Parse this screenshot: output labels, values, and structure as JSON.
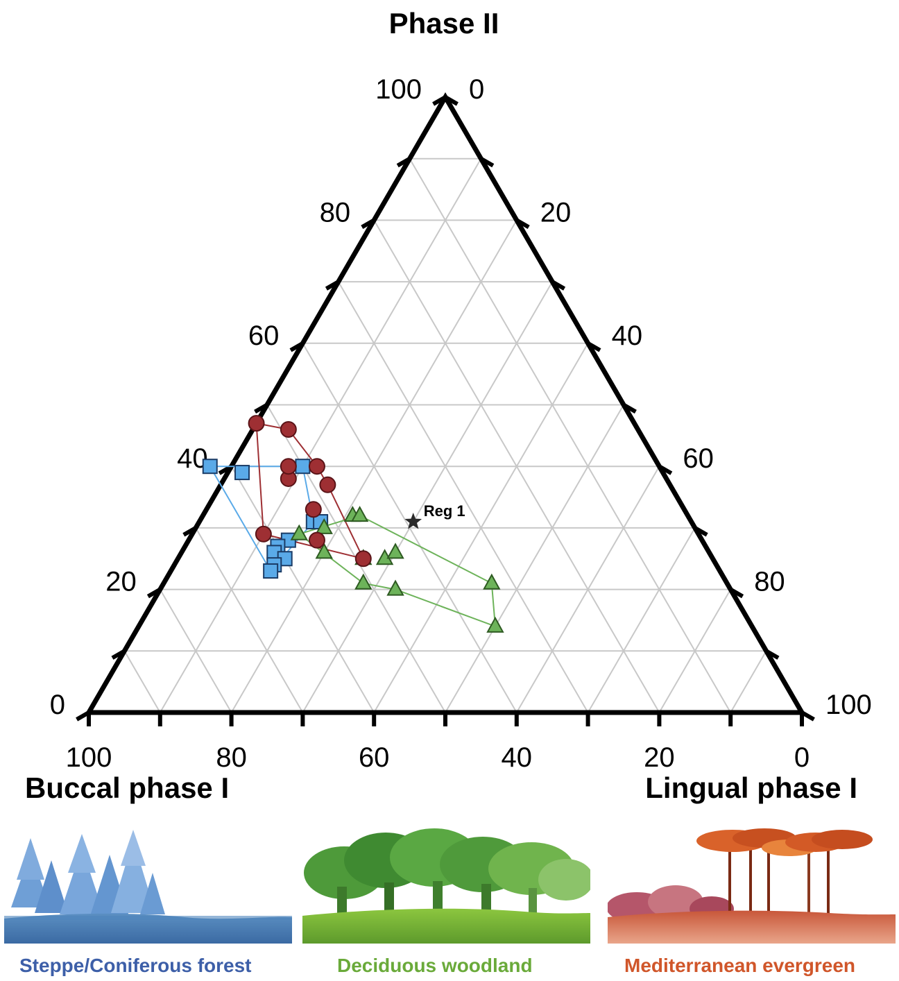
{
  "chart_data": {
    "type": "ternary-scatter",
    "title": "",
    "axes": {
      "top": "Phase II",
      "left": "Buccal phase I",
      "right": "Lingual phase I"
    },
    "ticks": [
      0,
      20,
      40,
      60,
      80,
      100
    ],
    "grid": true,
    "units": "percent",
    "series": [
      {
        "group": "steppe",
        "marker": "square",
        "color": "#5aaae8",
        "points": [
          {
            "phase2": 40,
            "buccal": 63,
            "lingual": -3
          },
          {
            "phase2": 39,
            "buccal": 59,
            "lingual": 2
          },
          {
            "phase2": 40,
            "buccal": 50,
            "lingual": 10
          },
          {
            "phase2": 31,
            "buccal": 53,
            "lingual": 16
          },
          {
            "phase2": 31,
            "buccal": 52,
            "lingual": 17
          },
          {
            "phase2": 28,
            "buccal": 58,
            "lingual": 14
          },
          {
            "phase2": 27,
            "buccal": 60,
            "lingual": 13
          },
          {
            "phase2": 26,
            "buccal": 61,
            "lingual": 13
          },
          {
            "phase2": 25,
            "buccal": 60,
            "lingual": 15
          },
          {
            "phase2": 24,
            "buccal": 62,
            "lingual": 14
          },
          {
            "phase2": 23,
            "buccal": 63,
            "lingual": 14
          }
        ]
      },
      {
        "group": "deciduous",
        "marker": "triangle",
        "color": "#6db35a",
        "points": [
          {
            "phase2": 29,
            "buccal": 56,
            "lingual": 15
          },
          {
            "phase2": 30,
            "buccal": 52,
            "lingual": 18
          },
          {
            "phase2": 32,
            "buccal": 47,
            "lingual": 21
          },
          {
            "phase2": 32,
            "buccal": 46,
            "lingual": 22
          },
          {
            "phase2": 26,
            "buccal": 54,
            "lingual": 20
          },
          {
            "phase2": 25,
            "buccal": 49,
            "lingual": 26
          },
          {
            "phase2": 25,
            "buccal": 46,
            "lingual": 29
          },
          {
            "phase2": 26,
            "buccal": 44,
            "lingual": 30
          },
          {
            "phase2": 21,
            "buccal": 51,
            "lingual": 28
          },
          {
            "phase2": 20,
            "buccal": 47,
            "lingual": 33
          },
          {
            "phase2": 21,
            "buccal": 33,
            "lingual": 46
          },
          {
            "phase2": 14,
            "buccal": 36,
            "lingual": 50
          }
        ]
      },
      {
        "group": "mediterranean",
        "marker": "circle",
        "color": "#9e2f33",
        "points": [
          {
            "phase2": 47,
            "buccal": 53,
            "lingual": 0
          },
          {
            "phase2": 46,
            "buccal": 49,
            "lingual": 5
          },
          {
            "phase2": 38,
            "buccal": 53,
            "lingual": 9
          },
          {
            "phase2": 40,
            "buccal": 52,
            "lingual": 8
          },
          {
            "phase2": 40,
            "buccal": 48,
            "lingual": 12
          },
          {
            "phase2": 37,
            "buccal": 48,
            "lingual": 15
          },
          {
            "phase2": 33,
            "buccal": 52,
            "lingual": 15
          },
          {
            "phase2": 29,
            "buccal": 61,
            "lingual": 10
          },
          {
            "phase2": 28,
            "buccal": 54,
            "lingual": 18
          },
          {
            "phase2": 25,
            "buccal": 49,
            "lingual": 26
          }
        ]
      }
    ],
    "hulls": [
      {
        "group": "steppe",
        "color": "#5aaae8",
        "point_order": [
          0,
          2,
          3,
          10,
          0
        ]
      },
      {
        "group": "deciduous",
        "color": "#6db35a",
        "point_order": [
          0,
          3,
          10,
          11,
          9,
          8,
          0
        ]
      },
      {
        "group": "mediterranean",
        "color": "#9e2f33",
        "point_order": [
          0,
          1,
          4,
          5,
          9,
          7,
          0
        ]
      }
    ],
    "annotations": [
      {
        "label": "Reg 1",
        "marker": "star",
        "color": "#2a2a2a",
        "phase2": 31,
        "buccal": 39,
        "lingual": 30
      }
    ]
  },
  "habitats": [
    {
      "label": "Steppe/Coniferous forest",
      "color": "#3d5fa8"
    },
    {
      "label": "Deciduous woodland",
      "color": "#6aaa3a"
    },
    {
      "label": "Mediterranean evergreen",
      "color": "#d0562a"
    }
  ]
}
